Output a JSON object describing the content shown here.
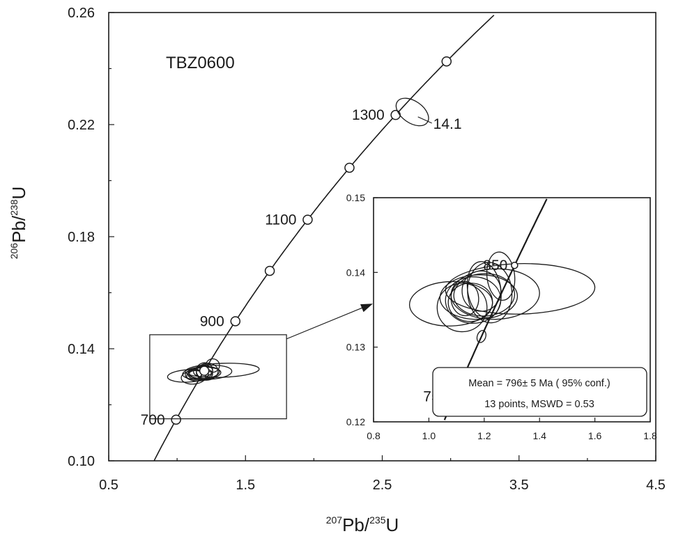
{
  "chart_data": [
    {
      "type": "scatter",
      "subtype": "concordia",
      "title": "",
      "sample_label": "TBZ0600",
      "xlabel": {
        "sup1": "207",
        "main1": "Pb/",
        "sup2": "235",
        "main2": "U"
      },
      "ylabel": {
        "sup1": "206",
        "main1": "Pb/",
        "sup2": "238",
        "main2": "U"
      },
      "xlim": [
        0.5,
        4.5
      ],
      "ylim": [
        0.1,
        0.26
      ],
      "x_ticks": [
        "0.5",
        "1.5",
        "2.5",
        "3.5",
        "4.5"
      ],
      "y_ticks": [
        "0.10",
        "0.14",
        "0.18",
        "0.22",
        "0.26"
      ],
      "grid": false,
      "concordia_age_markers_ma": [
        700,
        800,
        900,
        1000,
        1100,
        1200,
        1300,
        1400
      ],
      "age_labels": [
        "700",
        "900",
        "1100",
        "1300"
      ],
      "analyses": [
        {
          "x": 1.13,
          "y": 0.131,
          "sx": 0.05,
          "sy": 0.0017,
          "tilt": -5
        },
        {
          "x": 1.18,
          "y": 0.1312,
          "sx": 0.14,
          "sy": 0.0022,
          "tilt": -3
        },
        {
          "x": 1.2,
          "y": 0.1315,
          "sx": 0.11,
          "sy": 0.0021,
          "tilt": -4
        },
        {
          "x": 1.16,
          "y": 0.1308,
          "sx": 0.1,
          "sy": 0.0023,
          "tilt": -3
        },
        {
          "x": 1.24,
          "y": 0.1316,
          "sx": 0.16,
          "sy": 0.0025,
          "tilt": -3
        },
        {
          "x": 1.22,
          "y": 0.1318,
          "sx": 0.08,
          "sy": 0.003,
          "tilt": -8
        },
        {
          "x": 1.15,
          "y": 0.1305,
          "sx": 0.08,
          "sy": 0.0019,
          "tilt": -5
        },
        {
          "x": 1.2,
          "y": 0.1322,
          "sx": 0.06,
          "sy": 0.0028,
          "tilt": -15
        },
        {
          "x": 1.26,
          "y": 0.134,
          "sx": 0.05,
          "sy": 0.0024,
          "tilt": -10
        },
        {
          "x": 1.19,
          "y": 0.132,
          "sx": 0.07,
          "sy": 0.002,
          "tilt": -5
        },
        {
          "x": 1.33,
          "y": 0.1323,
          "sx": 0.27,
          "sy": 0.0025,
          "tilt": -2
        },
        {
          "x": 1.08,
          "y": 0.1303,
          "sx": 0.15,
          "sy": 0.0022,
          "tilt": -3
        },
        {
          "x": 1.12,
          "y": 0.1298,
          "sx": 0.09,
          "sy": 0.0024,
          "tilt": -4
        }
      ],
      "outlier": {
        "label": "14.1",
        "x": 2.72,
        "y": 0.2245,
        "sx": 0.08,
        "sy": 0.0065,
        "tilt": -55
      },
      "zoom_box": {
        "x": [
          0.8,
          1.8
        ],
        "y": [
          0.115,
          0.145
        ]
      }
    },
    {
      "type": "scatter",
      "subtype": "concordia-inset",
      "xlim": [
        0.8,
        1.8
      ],
      "ylim": [
        0.12,
        0.15
      ],
      "x_ticks": [
        "0.8",
        "1.0",
        "1.2",
        "1.4",
        "1.6",
        "1.8"
      ],
      "y_ticks": [
        "0.12",
        "0.13",
        "0.14",
        "0.15"
      ],
      "grid": false,
      "concordia_age_markers_ma": [
        750,
        850
      ],
      "age_labels": [
        "750",
        "850"
      ],
      "concordia_age_ma": 796,
      "stats_line1": "Mean = 796± 5 Ma ( 95% conf.)",
      "stats_line2": "13 points, MSWD = 0.53"
    }
  ]
}
